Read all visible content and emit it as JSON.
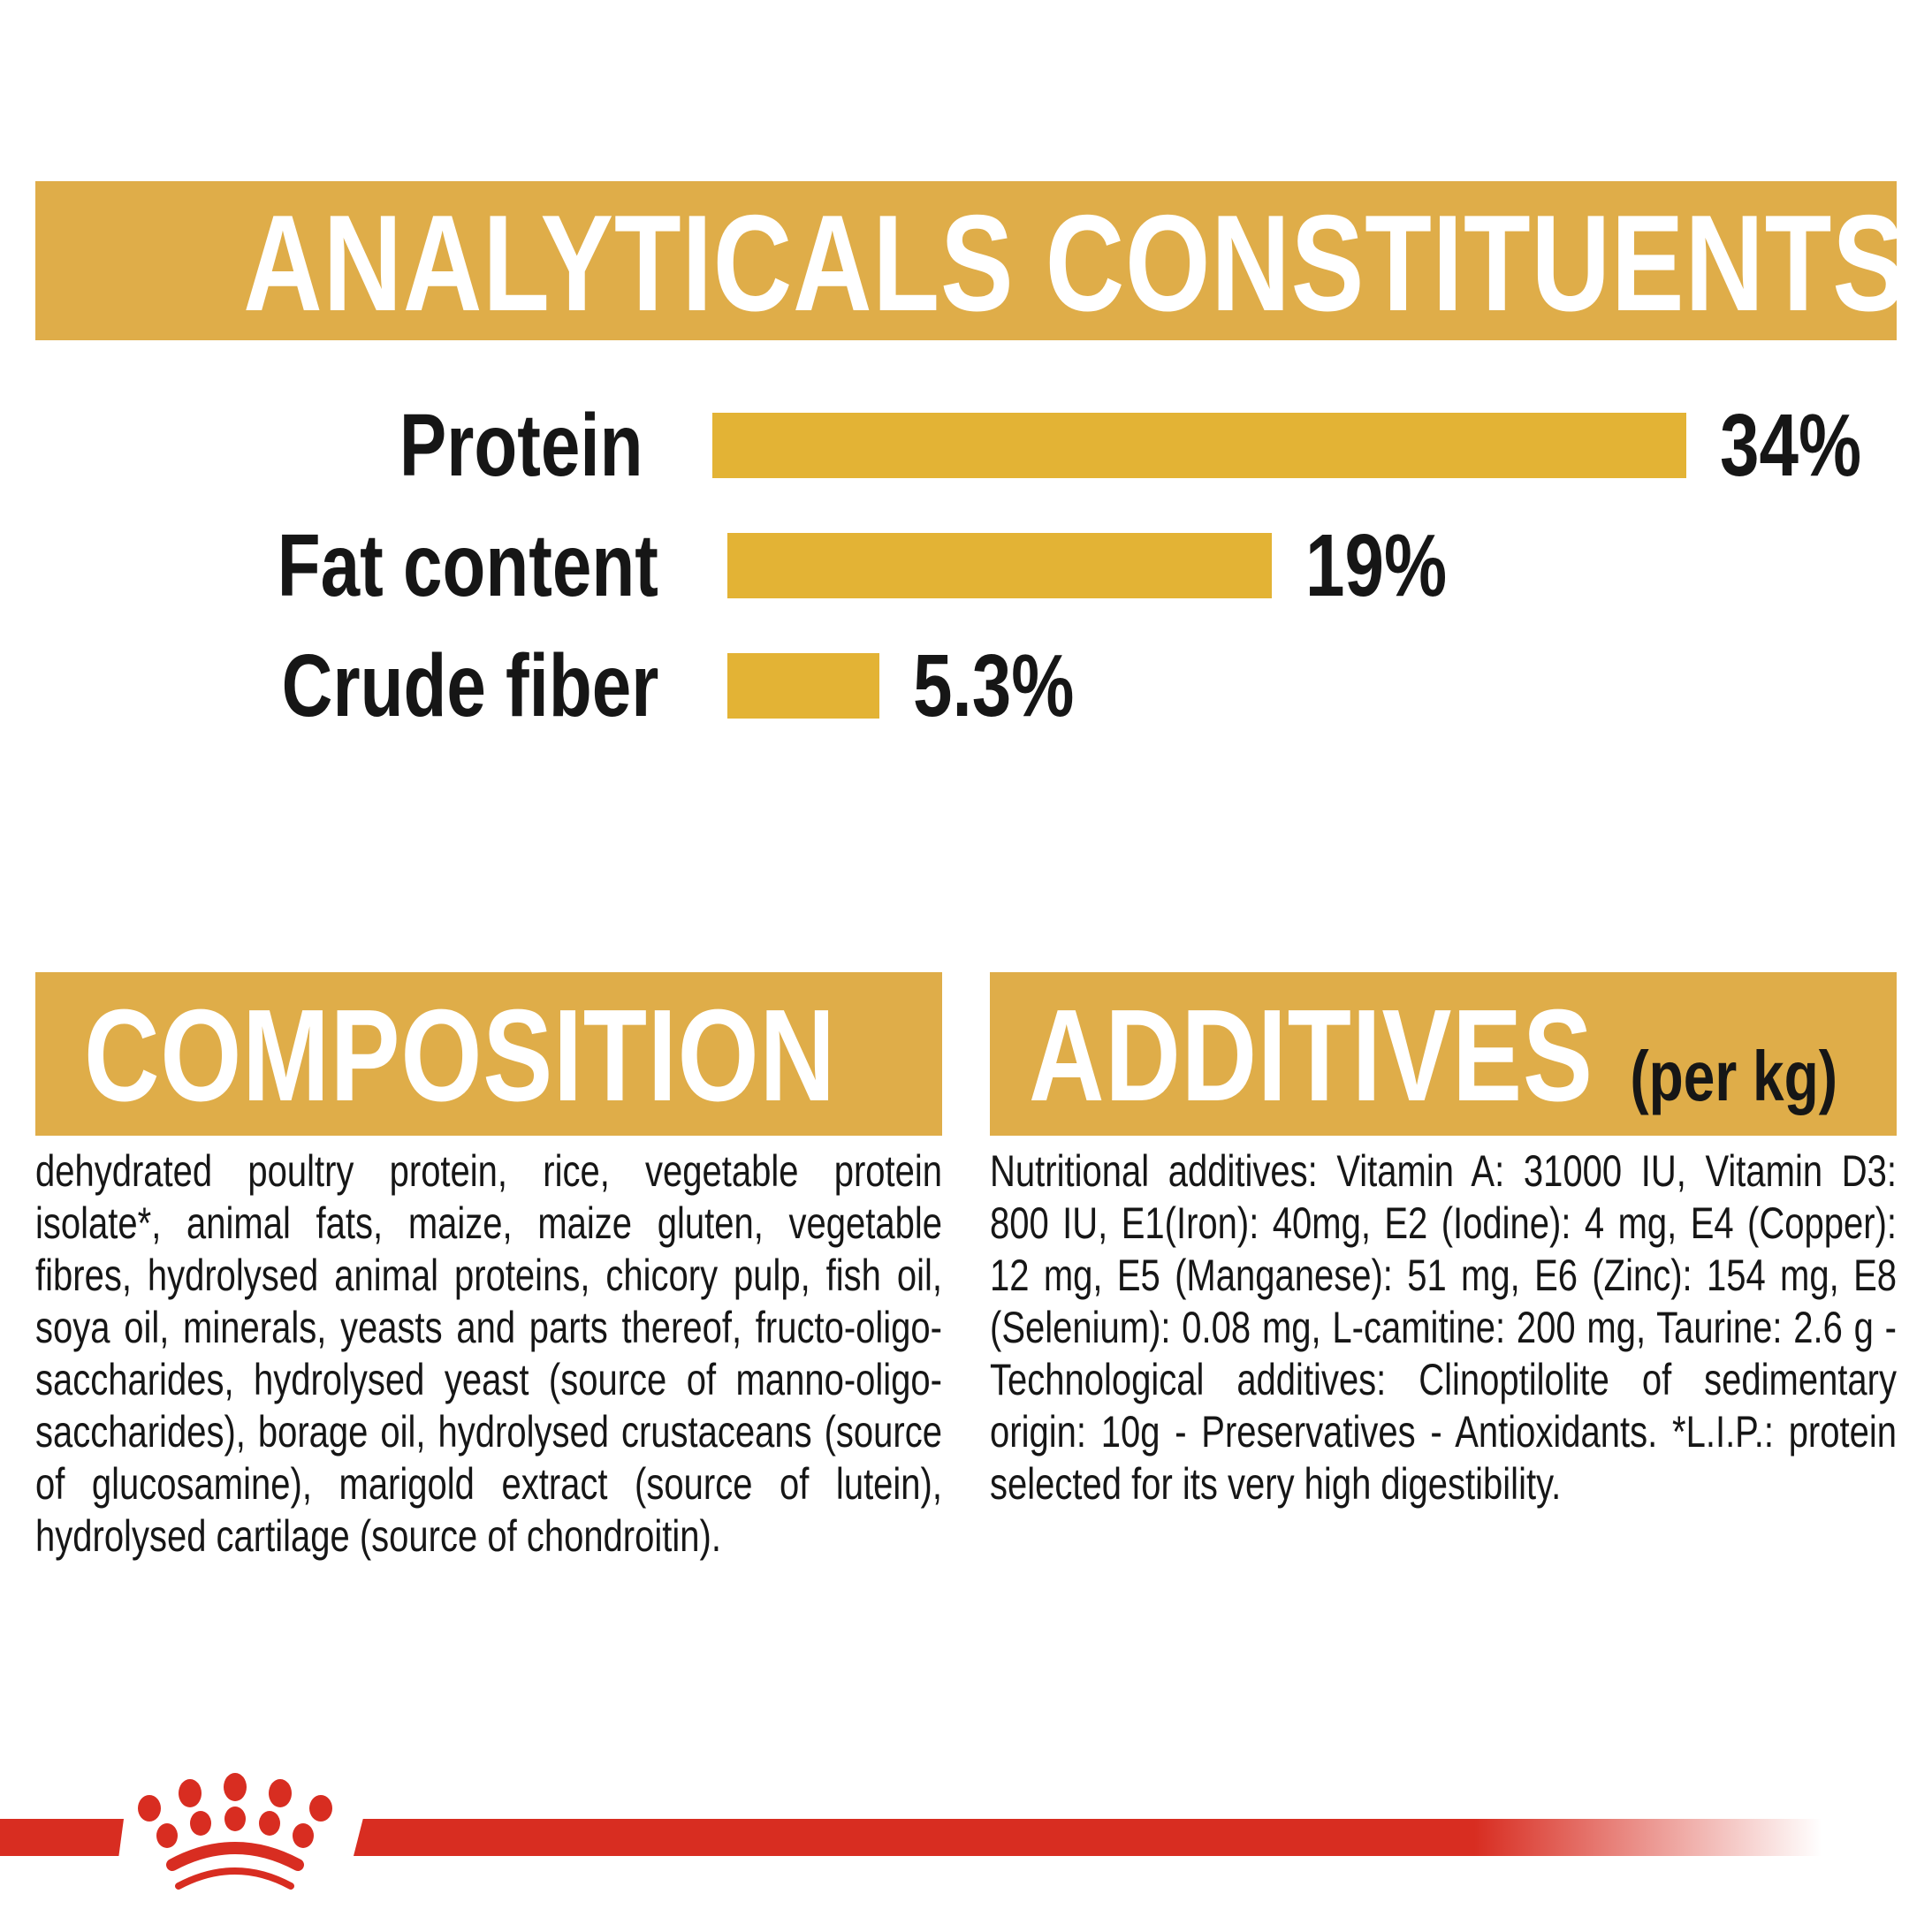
{
  "colors": {
    "banner_gold": "#DFAD49",
    "bar_gold": "#E3B335",
    "text_black": "#161616",
    "banner_text": "#FFFFFF",
    "brand_red": "#D82D21",
    "background": "#FFFFFF"
  },
  "header": {
    "title": "ANALYTICALS CONSTITUENTS"
  },
  "chart_data": {
    "type": "bar",
    "orientation": "horizontal",
    "title": "ANALYTICALS CONSTITUENTS",
    "categories": [
      "Protein",
      "Fat content",
      "Crude fiber"
    ],
    "values": [
      34,
      19,
      5.3
    ],
    "value_labels": [
      "34%",
      "19%",
      "5.3%"
    ],
    "xlim": [
      0,
      34
    ],
    "bar_color": "#E3B335",
    "grid": false,
    "legend": false,
    "value_label_position": "right-of-bar"
  },
  "composition": {
    "title": "COMPOSITION",
    "body": "dehydrated poultry protein, rice, vegetable protein isolate*, animal fats, maize, maize gluten, vegetable fibres, hydrolysed animal proteins, chicory pulp, fish oil, soya oil, minerals, yeasts and parts thereof, fructo-oligo-saccharides, hydrolysed yeast (source of manno-oligo-saccharides), borage oil, hydrolysed crustaceans (source of glucosamine), marigold extract (source of lutein), hydrolysed cartilage (source of chondroitin)."
  },
  "additives": {
    "title": "ADDITIVES",
    "subtitle": "(per kg)",
    "body": "Nutritional additives: Vitamin A: 31000 IU, Vitamin D3: 800 IU, E1(Iron): 40mg, E2 (Iodine): 4 mg, E4 (Copper): 12 mg, E5 (Manganese): 51 mg, E6 (Zinc): 154 mg, E8 (Selenium): 0.08 mg, L-camitine: 200 mg, Taurine: 2.6 g - Technological additives: Clinoptilolite of sedimentary origin: 10g - Preservatives - Antioxidants. *L.I.P.: protein selected for its very high digestibility."
  },
  "footer": {
    "brand_mark": "royal-canin-crown"
  }
}
